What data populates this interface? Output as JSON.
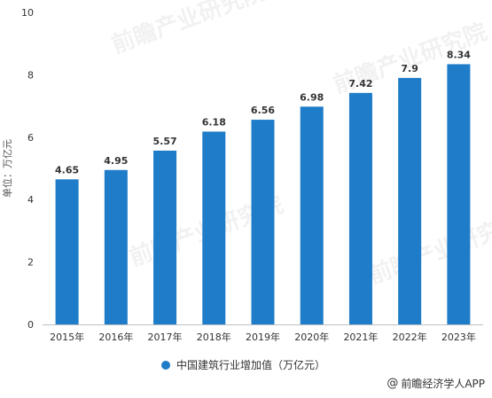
{
  "chart_data": {
    "type": "bar",
    "categories": [
      "2015年",
      "2016年",
      "2017年",
      "2018年",
      "2019年",
      "2020年",
      "2021年",
      "2022年",
      "2023年"
    ],
    "values": [
      4.65,
      4.95,
      5.57,
      6.18,
      6.56,
      6.98,
      7.42,
      7.9,
      8.34
    ],
    "data_labels": [
      "4.65",
      "4.95",
      "5.57",
      "6.18",
      "6.56",
      "6.98",
      "7.42",
      "7.9",
      "8.34"
    ],
    "ylabel": "单位：万亿元",
    "ylim": [
      0,
      10
    ],
    "yticks": [
      0,
      2,
      4,
      6,
      8,
      10
    ],
    "ytick_labels": [
      "0",
      "2",
      "4",
      "6",
      "8",
      "10"
    ],
    "grid": false,
    "legend_position": "bottom",
    "bar_color": "#1e7cc8",
    "series": [
      {
        "name": "中国建筑行业增加值（万亿元）",
        "values": [
          4.65,
          4.95,
          5.57,
          6.18,
          6.56,
          6.98,
          7.42,
          7.9,
          8.34
        ]
      }
    ]
  },
  "legend": {
    "label": "中国建筑行业增加值（万亿元）",
    "color": "#1e7cc8"
  },
  "source": {
    "text": "前瞻经济学人APP",
    "icon": "at-icon",
    "symbol": "@"
  },
  "watermark": {
    "text": "前瞻产业研究院"
  }
}
